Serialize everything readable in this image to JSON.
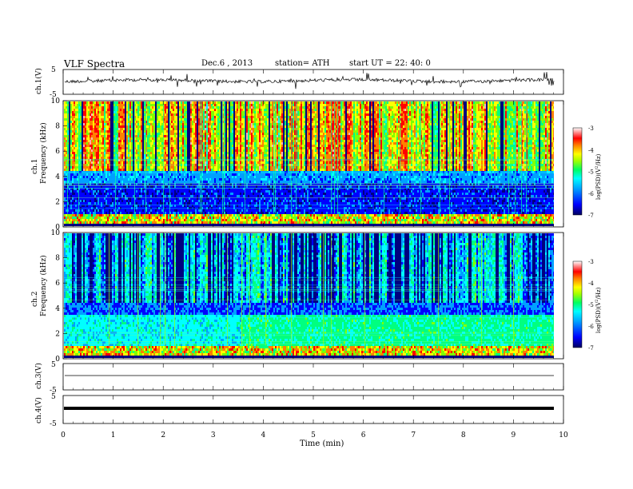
{
  "header": {
    "title": "VLF  Spectra",
    "date": "Dec.6  , 2013",
    "station": "station= ATH",
    "start": "start  UT  =   22: 40: 0"
  },
  "chart_data": [
    {
      "type": "line",
      "panel": "ch1-waveform",
      "ylabel": "ch.1(V)",
      "ylim": [
        -5,
        5
      ],
      "yticks": [
        "5",
        "-5"
      ],
      "xlim": [
        0,
        10
      ]
    },
    {
      "type": "heatmap",
      "panel": "ch1-spectrogram",
      "ylabel": "ch.1\nFrequency  (kHz)",
      "ylim": [
        0,
        10
      ],
      "yticks": [
        "0",
        "2",
        "4",
        "6",
        "8",
        "10"
      ],
      "xlim": [
        0,
        10
      ],
      "colorbar": {
        "label": "log(PSD)(V^2/Hz)",
        "range": [
          -7,
          -3
        ],
        "ticks": [
          "-3",
          "-4",
          "-5",
          "-6",
          "-7"
        ]
      }
    },
    {
      "type": "heatmap",
      "panel": "ch2-spectrogram",
      "ylabel": "ch.2\nFrequency  (kHz)",
      "ylim": [
        0,
        10
      ],
      "yticks": [
        "0",
        "2",
        "4",
        "6",
        "8",
        "10"
      ],
      "xlim": [
        0,
        10
      ],
      "colorbar": {
        "label": "log(PSD)(V^2/Hz)",
        "range": [
          -7,
          -3
        ],
        "ticks": [
          "-3",
          "-4",
          "-5",
          "-6",
          "-7"
        ]
      }
    },
    {
      "type": "line",
      "panel": "ch3-waveform",
      "ylabel": "ch.3(V)",
      "ylim": [
        -5,
        5
      ],
      "yticks": [
        "5",
        "-5"
      ],
      "xlim": [
        0,
        10
      ]
    },
    {
      "type": "line",
      "panel": "ch4-waveform",
      "ylabel": "ch.4(V)",
      "ylim": [
        -5,
        5
      ],
      "yticks": [
        "5",
        "-5"
      ],
      "xlim": [
        0,
        10
      ]
    }
  ],
  "xaxis": {
    "label": "Time  (min)",
    "ticks": [
      "0",
      "1",
      "2",
      "3",
      "4",
      "5",
      "6",
      "7",
      "8",
      "9",
      "10"
    ]
  },
  "colors": {
    "cmap": [
      "#000080",
      "#0000ff",
      "#00a0ff",
      "#00ffff",
      "#00ff80",
      "#80ff00",
      "#ffff00",
      "#ff8000",
      "#ff0000",
      "#ffb0b0"
    ]
  }
}
